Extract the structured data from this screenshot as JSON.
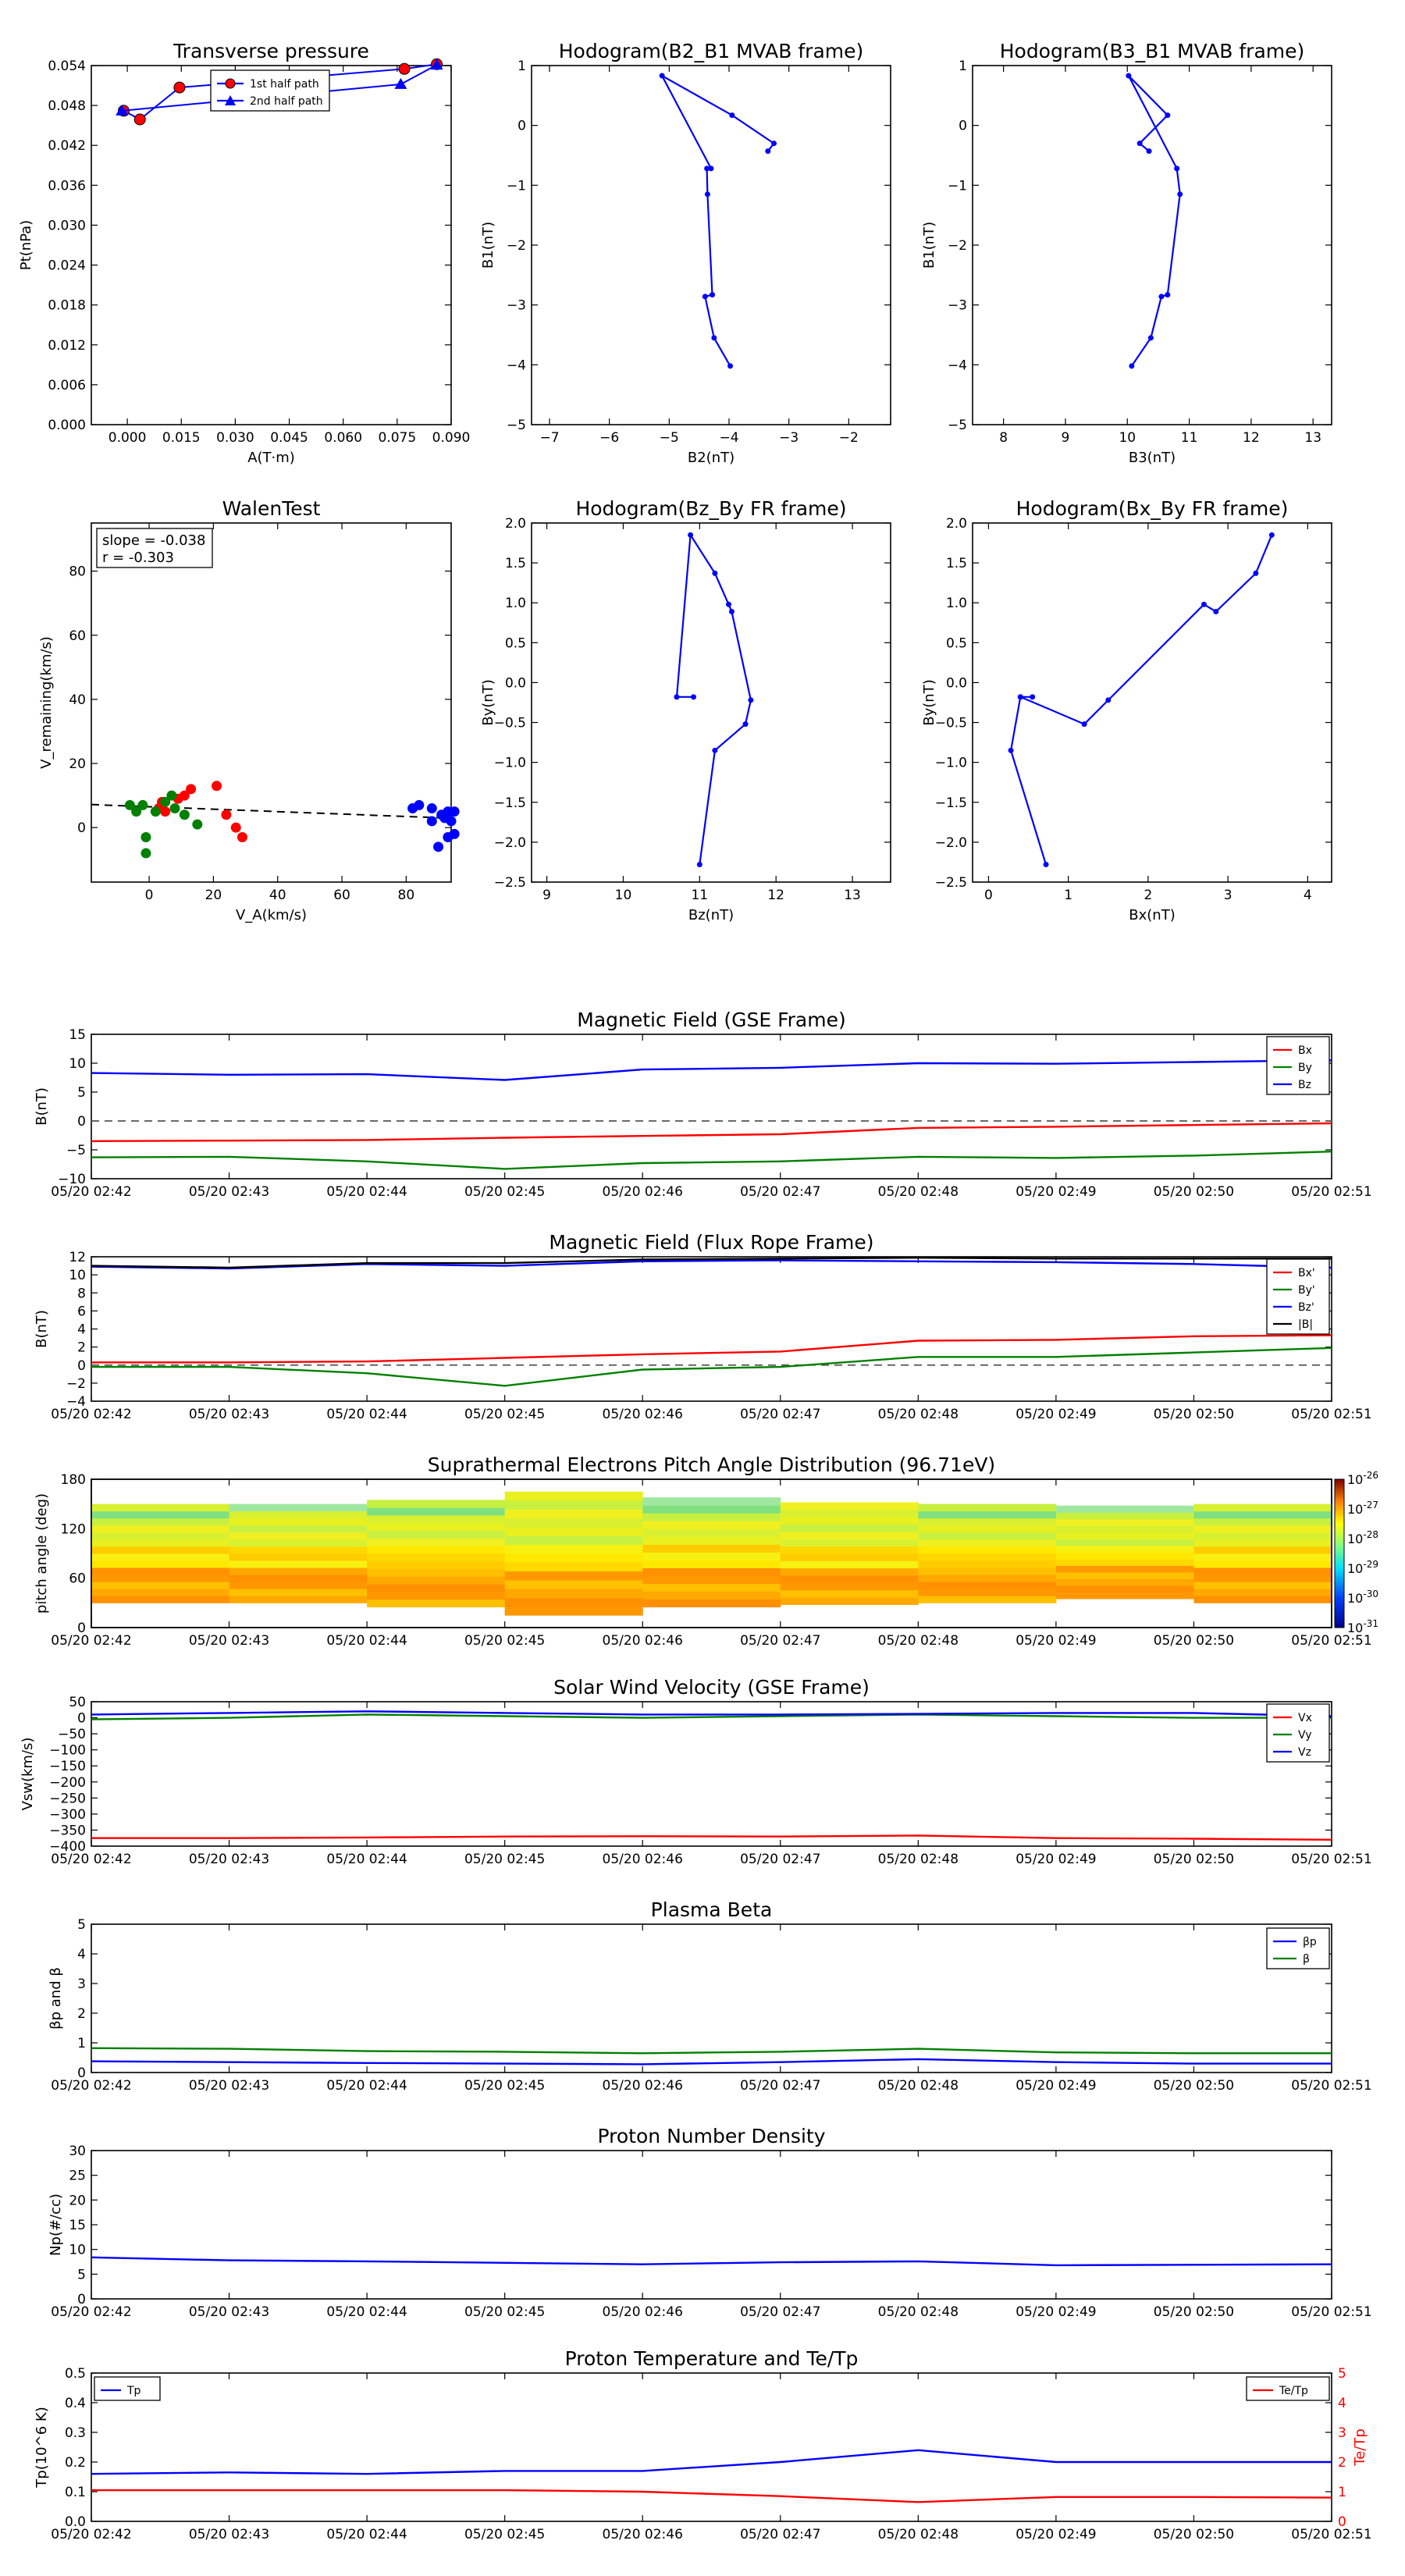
{
  "figure": {
    "background": "#ffffff"
  },
  "chart_data": [
    {
      "id": "tp",
      "type": "scatter",
      "title": "Transverse pressure",
      "xlabel": "A(T·m)",
      "ylabel": "Pt(nPa)",
      "xlim": [
        -0.01,
        0.09
      ],
      "ylim": [
        0,
        0.054
      ],
      "xticks": [
        0.0,
        0.015,
        0.03,
        0.045,
        0.06,
        0.075,
        0.09
      ],
      "xticklabels": [
        "0.000",
        "0.015",
        "0.030",
        "0.045",
        "0.060",
        "0.075",
        "0.090"
      ],
      "yticks": [
        0,
        0.006,
        0.012,
        0.018,
        0.024,
        0.03,
        0.036,
        0.042,
        0.048,
        0.054
      ],
      "yticklabels": [
        "0.000",
        "0.006",
        "0.012",
        "0.018",
        "0.024",
        "0.030",
        "0.036",
        "0.042",
        "0.048",
        "0.054"
      ],
      "legend": "top-center",
      "series": [
        {
          "name": "1st half path",
          "color": "#ff0000",
          "line": "#0000ff",
          "marker": "circle",
          "x": [
            -0.001,
            0.0035,
            0.0145,
            0.077,
            0.086
          ],
          "y": [
            0.0472,
            0.0459,
            0.0507,
            0.0535,
            0.0542
          ]
        },
        {
          "name": "2nd half path",
          "color": "#0000ff",
          "line": "#0000ff",
          "marker": "triangle",
          "x": [
            -0.0015,
            0.076,
            0.086
          ],
          "y": [
            0.0472,
            0.0512,
            0.0541
          ]
        }
      ]
    },
    {
      "id": "h1",
      "type": "line",
      "title": "Hodogram(B2_B1 MVAB frame)",
      "xlabel": "B2(nT)",
      "ylabel": "B1(nT)",
      "xlim": [
        -7.3,
        -1.3
      ],
      "ylim": [
        -5,
        1
      ],
      "xticks": [
        -7,
        -6,
        -5,
        -4,
        -3,
        -2
      ],
      "yticks": [
        -5,
        -4,
        -3,
        -2,
        -1,
        0,
        1
      ],
      "series": [
        {
          "name": "",
          "color": "#0000ff",
          "marker": "dot",
          "x": [
            -3.98,
            -4.25,
            -4.4,
            -4.28,
            -4.36,
            -4.37,
            -4.3,
            -5.12,
            -3.95,
            -3.25,
            -3.35
          ],
          "y": [
            -4.02,
            -3.55,
            -2.86,
            -2.83,
            -1.15,
            -0.72,
            -0.72,
            0.83,
            0.17,
            -0.3,
            -0.43
          ]
        }
      ]
    },
    {
      "id": "h2",
      "type": "line",
      "title": "Hodogram(B3_B1 MVAB frame)",
      "xlabel": "B3(nT)",
      "ylabel": "B1(nT)",
      "xlim": [
        7.5,
        13.3
      ],
      "ylim": [
        -5,
        1
      ],
      "xticks": [
        8,
        9,
        10,
        11,
        12,
        13
      ],
      "yticks": [
        -5,
        -4,
        -3,
        -2,
        -1,
        0,
        1
      ],
      "series": [
        {
          "name": "",
          "color": "#0000ff",
          "marker": "dot",
          "x": [
            10.07,
            10.38,
            10.55,
            10.65,
            10.85,
            10.8,
            10.8,
            10.02,
            10.65,
            10.2,
            10.35
          ],
          "y": [
            -4.02,
            -3.55,
            -2.86,
            -2.83,
            -1.15,
            -0.72,
            -0.72,
            0.83,
            0.17,
            -0.3,
            -0.43
          ]
        }
      ]
    },
    {
      "id": "walen",
      "type": "scatter",
      "title": "WalenTest",
      "xlabel": "V_A(km/s)",
      "ylabel": "V_remaining(km/s)",
      "xlim": [
        -18,
        94
      ],
      "ylim": [
        -17,
        95
      ],
      "xticks": [
        0,
        20,
        40,
        60,
        80
      ],
      "yticks": [
        0,
        20,
        40,
        60,
        80
      ],
      "annotation": [
        "slope = -0.038",
        "r = -0.303"
      ],
      "fit": {
        "slope": -0.038,
        "intercept": 6.5,
        "color": "#000000"
      },
      "series": [
        {
          "name": "",
          "color": "#ff0000",
          "x": [
            3,
            4,
            5,
            9,
            11,
            13,
            21,
            24,
            27,
            29
          ],
          "y": [
            6,
            8,
            5,
            9,
            10,
            12,
            13,
            4,
            0,
            -3
          ]
        },
        {
          "name": "",
          "color": "#008000",
          "x": [
            -6,
            -4,
            -2,
            -1,
            -1,
            2,
            5,
            7,
            8,
            11,
            15
          ],
          "y": [
            7,
            5,
            7,
            -3,
            -8,
            5,
            8,
            10,
            6,
            4,
            1
          ]
        },
        {
          "name": "",
          "color": "#0000ff",
          "x": [
            82,
            84,
            88,
            88,
            90,
            91,
            92,
            93,
            93,
            94,
            95,
            95
          ],
          "y": [
            6,
            7,
            6,
            2,
            -6,
            4,
            3,
            -3,
            5,
            2,
            -2,
            5
          ]
        }
      ]
    },
    {
      "id": "h3",
      "type": "line",
      "title": "Hodogram(Bz_By FR frame)",
      "xlabel": "Bz(nT)",
      "ylabel": "By(nT)",
      "xlim": [
        8.8,
        13.5
      ],
      "ylim": [
        -2.5,
        2
      ],
      "xticks": [
        9,
        10,
        11,
        12,
        13
      ],
      "yticks": [
        -2.5,
        -2.0,
        -1.5,
        -1.0,
        -0.5,
        0.0,
        0.5,
        1.0,
        1.5,
        2.0
      ],
      "yticklabels": [
        "−2.5",
        "−2.0",
        "−1.5",
        "−1.0",
        "−0.5",
        "0.0",
        "0.5",
        "1.0",
        "1.5",
        "2.0"
      ],
      "series": [
        {
          "name": "",
          "color": "#0000ff",
          "marker": "dot",
          "x": [
            11.0,
            11.2,
            11.6,
            11.67,
            11.42,
            11.38,
            11.2,
            10.88,
            10.7,
            10.92
          ],
          "y": [
            -2.28,
            -0.85,
            -0.52,
            -0.22,
            0.89,
            0.98,
            1.37,
            1.85,
            -0.18,
            -0.18
          ]
        }
      ]
    },
    {
      "id": "h4",
      "type": "line",
      "title": "Hodogram(Bx_By FR frame)",
      "xlabel": "Bx(nT)",
      "ylabel": "By(nT)",
      "xlim": [
        -0.2,
        4.3
      ],
      "ylim": [
        -2.5,
        2
      ],
      "xticks": [
        0,
        1,
        2,
        3,
        4
      ],
      "yticks": [
        -2.5,
        -2.0,
        -1.5,
        -1.0,
        -0.5,
        0.0,
        0.5,
        1.0,
        1.5,
        2.0
      ],
      "yticklabels": [
        "−2.5",
        "−2.0",
        "−1.5",
        "−1.0",
        "−0.5",
        "0.0",
        "0.5",
        "1.0",
        "1.5",
        "2.0"
      ],
      "series": [
        {
          "name": "",
          "color": "#0000ff",
          "marker": "dot",
          "x": [
            0.72,
            0.28,
            0.4,
            0.55,
            0.4,
            1.2,
            1.5,
            2.7,
            2.85,
            3.35,
            3.55
          ],
          "y": [
            -2.28,
            -0.85,
            -0.18,
            -0.18,
            -0.18,
            -0.52,
            -0.22,
            0.98,
            0.89,
            1.37,
            1.85
          ]
        }
      ]
    },
    {
      "id": "mag",
      "type": "line",
      "title": "Magnetic Field (GSE Frame)",
      "ylabel": "B(nT)",
      "ylim": [
        -10,
        15
      ],
      "yticks": [
        -10,
        -5,
        0,
        5,
        10,
        15
      ],
      "zero_line": true,
      "legend": "top-right",
      "series": [
        {
          "name": "Bx",
          "color": "#ff0000",
          "values": [
            -3.5,
            -3.4,
            -3.3,
            -2.9,
            -2.6,
            -2.3,
            -1.2,
            -1.0,
            -0.7,
            -0.4
          ]
        },
        {
          "name": "By",
          "color": "#008000",
          "values": [
            -6.3,
            -6.2,
            -7.0,
            -8.3,
            -7.3,
            -7.0,
            -6.2,
            -6.4,
            -6.0,
            -5.3
          ]
        },
        {
          "name": "Bz",
          "color": "#0000ff",
          "values": [
            8.3,
            8.0,
            8.1,
            7.1,
            8.9,
            9.2,
            10.0,
            9.9,
            10.2,
            10.5
          ]
        }
      ]
    },
    {
      "id": "mag_fr",
      "type": "line",
      "title": "Magnetic Field (Flux Rope Frame)",
      "ylabel": "B(nT)",
      "ylim": [
        -4,
        12
      ],
      "yticks": [
        -4,
        -2,
        0,
        2,
        4,
        6,
        8,
        10,
        12
      ],
      "zero_line": true,
      "legend": "top-right",
      "series": [
        {
          "name": "Bx'",
          "color": "#ff0000",
          "values": [
            0.3,
            0.3,
            0.4,
            0.8,
            1.2,
            1.5,
            2.7,
            2.8,
            3.2,
            3.3
          ]
        },
        {
          "name": "By'",
          "color": "#008000",
          "values": [
            -0.2,
            -0.2,
            -0.9,
            -2.3,
            -0.5,
            -0.2,
            0.9,
            0.9,
            1.4,
            1.9
          ]
        },
        {
          "name": "Bz'",
          "color": "#0000ff",
          "values": [
            10.9,
            10.7,
            11.2,
            11.0,
            11.5,
            11.6,
            11.5,
            11.4,
            11.2,
            10.8
          ]
        },
        {
          "name": "|B|",
          "color": "#000000",
          "values": [
            11.0,
            10.8,
            11.3,
            11.3,
            11.7,
            11.8,
            11.9,
            11.8,
            11.8,
            11.8
          ]
        }
      ]
    },
    {
      "id": "pad",
      "type": "heatmap",
      "title": "Suprathermal Electrons Pitch Angle Distribution (96.71eV)",
      "ylabel": "pitch angle (deg)",
      "ylim": [
        0,
        180
      ],
      "yticks": [
        0,
        60,
        120,
        180
      ],
      "colorbar": [
        "10^-26",
        "10^-27",
        "10^-28",
        "10^-29",
        "10^-30",
        "10^-31"
      ],
      "columns": [
        {
          "t": [
            0,
            1
          ],
          "from": 30,
          "to": 150
        },
        {
          "t": [
            1,
            2
          ],
          "from": 30,
          "to": 150
        },
        {
          "t": [
            2,
            3
          ],
          "from": 25,
          "to": 155
        },
        {
          "t": [
            3,
            4
          ],
          "from": 15,
          "to": 165
        },
        {
          "t": [
            4,
            5
          ],
          "from": 25,
          "to": 158
        },
        {
          "t": [
            5,
            6
          ],
          "from": 28,
          "to": 152
        },
        {
          "t": [
            6,
            7
          ],
          "from": 30,
          "to": 150
        },
        {
          "t": [
            7,
            8
          ],
          "from": 35,
          "to": 148
        },
        {
          "t": [
            8,
            9
          ],
          "from": 30,
          "to": 150
        }
      ]
    },
    {
      "id": "vsw",
      "type": "line",
      "title": "Solar Wind Velocity (GSE Frame)",
      "ylabel": "Vsw(km/s)",
      "ylim": [
        -400,
        50
      ],
      "yticks": [
        -400,
        -350,
        -300,
        -250,
        -200,
        -150,
        -100,
        -50,
        0,
        50
      ],
      "yticklabels": [
        "−400",
        "−350",
        "−300",
        "−250",
        "−200",
        "−150",
        "−100",
        "−50",
        "0",
        "50"
      ],
      "legend": "top-right",
      "series": [
        {
          "name": "Vx",
          "color": "#ff0000",
          "values": [
            -375,
            -375,
            -373,
            -370,
            -369,
            -370,
            -367,
            -375,
            -377,
            -380
          ]
        },
        {
          "name": "Vy",
          "color": "#008000",
          "values": [
            -5,
            0,
            10,
            5,
            0,
            5,
            10,
            5,
            0,
            0
          ]
        },
        {
          "name": "Vz",
          "color": "#0000ff",
          "values": [
            10,
            15,
            20,
            15,
            10,
            10,
            12,
            15,
            15,
            5
          ]
        }
      ]
    },
    {
      "id": "beta",
      "type": "line",
      "title": "Plasma Beta",
      "ylabel": "βp and β",
      "ylim": [
        0,
        5
      ],
      "yticks": [
        0,
        1,
        2,
        3,
        4,
        5
      ],
      "legend": "top-right",
      "series": [
        {
          "name": "βp",
          "color": "#0000ff",
          "values": [
            0.38,
            0.35,
            0.32,
            0.3,
            0.28,
            0.35,
            0.45,
            0.35,
            0.3,
            0.3
          ]
        },
        {
          "name": "β",
          "color": "#008000",
          "values": [
            0.82,
            0.8,
            0.72,
            0.7,
            0.65,
            0.7,
            0.8,
            0.68,
            0.65,
            0.65
          ]
        }
      ]
    },
    {
      "id": "np",
      "type": "line",
      "title": "Proton Number Density",
      "ylabel": "Np(#/cc)",
      "ylim": [
        0,
        30
      ],
      "yticks": [
        0,
        5,
        10,
        15,
        20,
        25,
        30
      ],
      "series": [
        {
          "name": "",
          "color": "#0000ff",
          "values": [
            8.4,
            7.8,
            7.6,
            7.3,
            7.0,
            7.4,
            7.6,
            6.8,
            6.9,
            7.0
          ]
        }
      ]
    },
    {
      "id": "temp",
      "type": "line",
      "title": "Proton Temperature and Te/Tp",
      "ylabel": "Tp(10^6 K)",
      "ylabel_right": "Te/Tp",
      "ylim": [
        0,
        0.5
      ],
      "yticks": [
        0,
        0.1,
        0.2,
        0.3,
        0.4,
        0.5
      ],
      "yticklabels": [
        "0.0",
        "0.1",
        "0.2",
        "0.3",
        "0.4",
        "0.5"
      ],
      "ylim_right": [
        0,
        5
      ],
      "yticks_right": [
        0,
        1,
        2,
        3,
        4,
        5
      ],
      "series": [
        {
          "name": "Tp",
          "color": "#0000ff",
          "axis": "left",
          "values": [
            0.16,
            0.165,
            0.16,
            0.17,
            0.17,
            0.2,
            0.24,
            0.2,
            0.2,
            0.2
          ]
        },
        {
          "name": "Te/Tp",
          "color": "#ff0000",
          "axis": "right",
          "values": [
            1.05,
            1.05,
            1.05,
            1.05,
            1.0,
            0.85,
            0.65,
            0.82,
            0.82,
            0.8
          ]
        }
      ]
    }
  ],
  "time_axis": {
    "labels": [
      "05/20 02:42",
      "05/20 02:43",
      "05/20 02:44",
      "05/20 02:45",
      "05/20 02:46",
      "05/20 02:47",
      "05/20 02:48",
      "05/20 02:49",
      "05/20 02:50",
      "05/20 02:51"
    ]
  }
}
